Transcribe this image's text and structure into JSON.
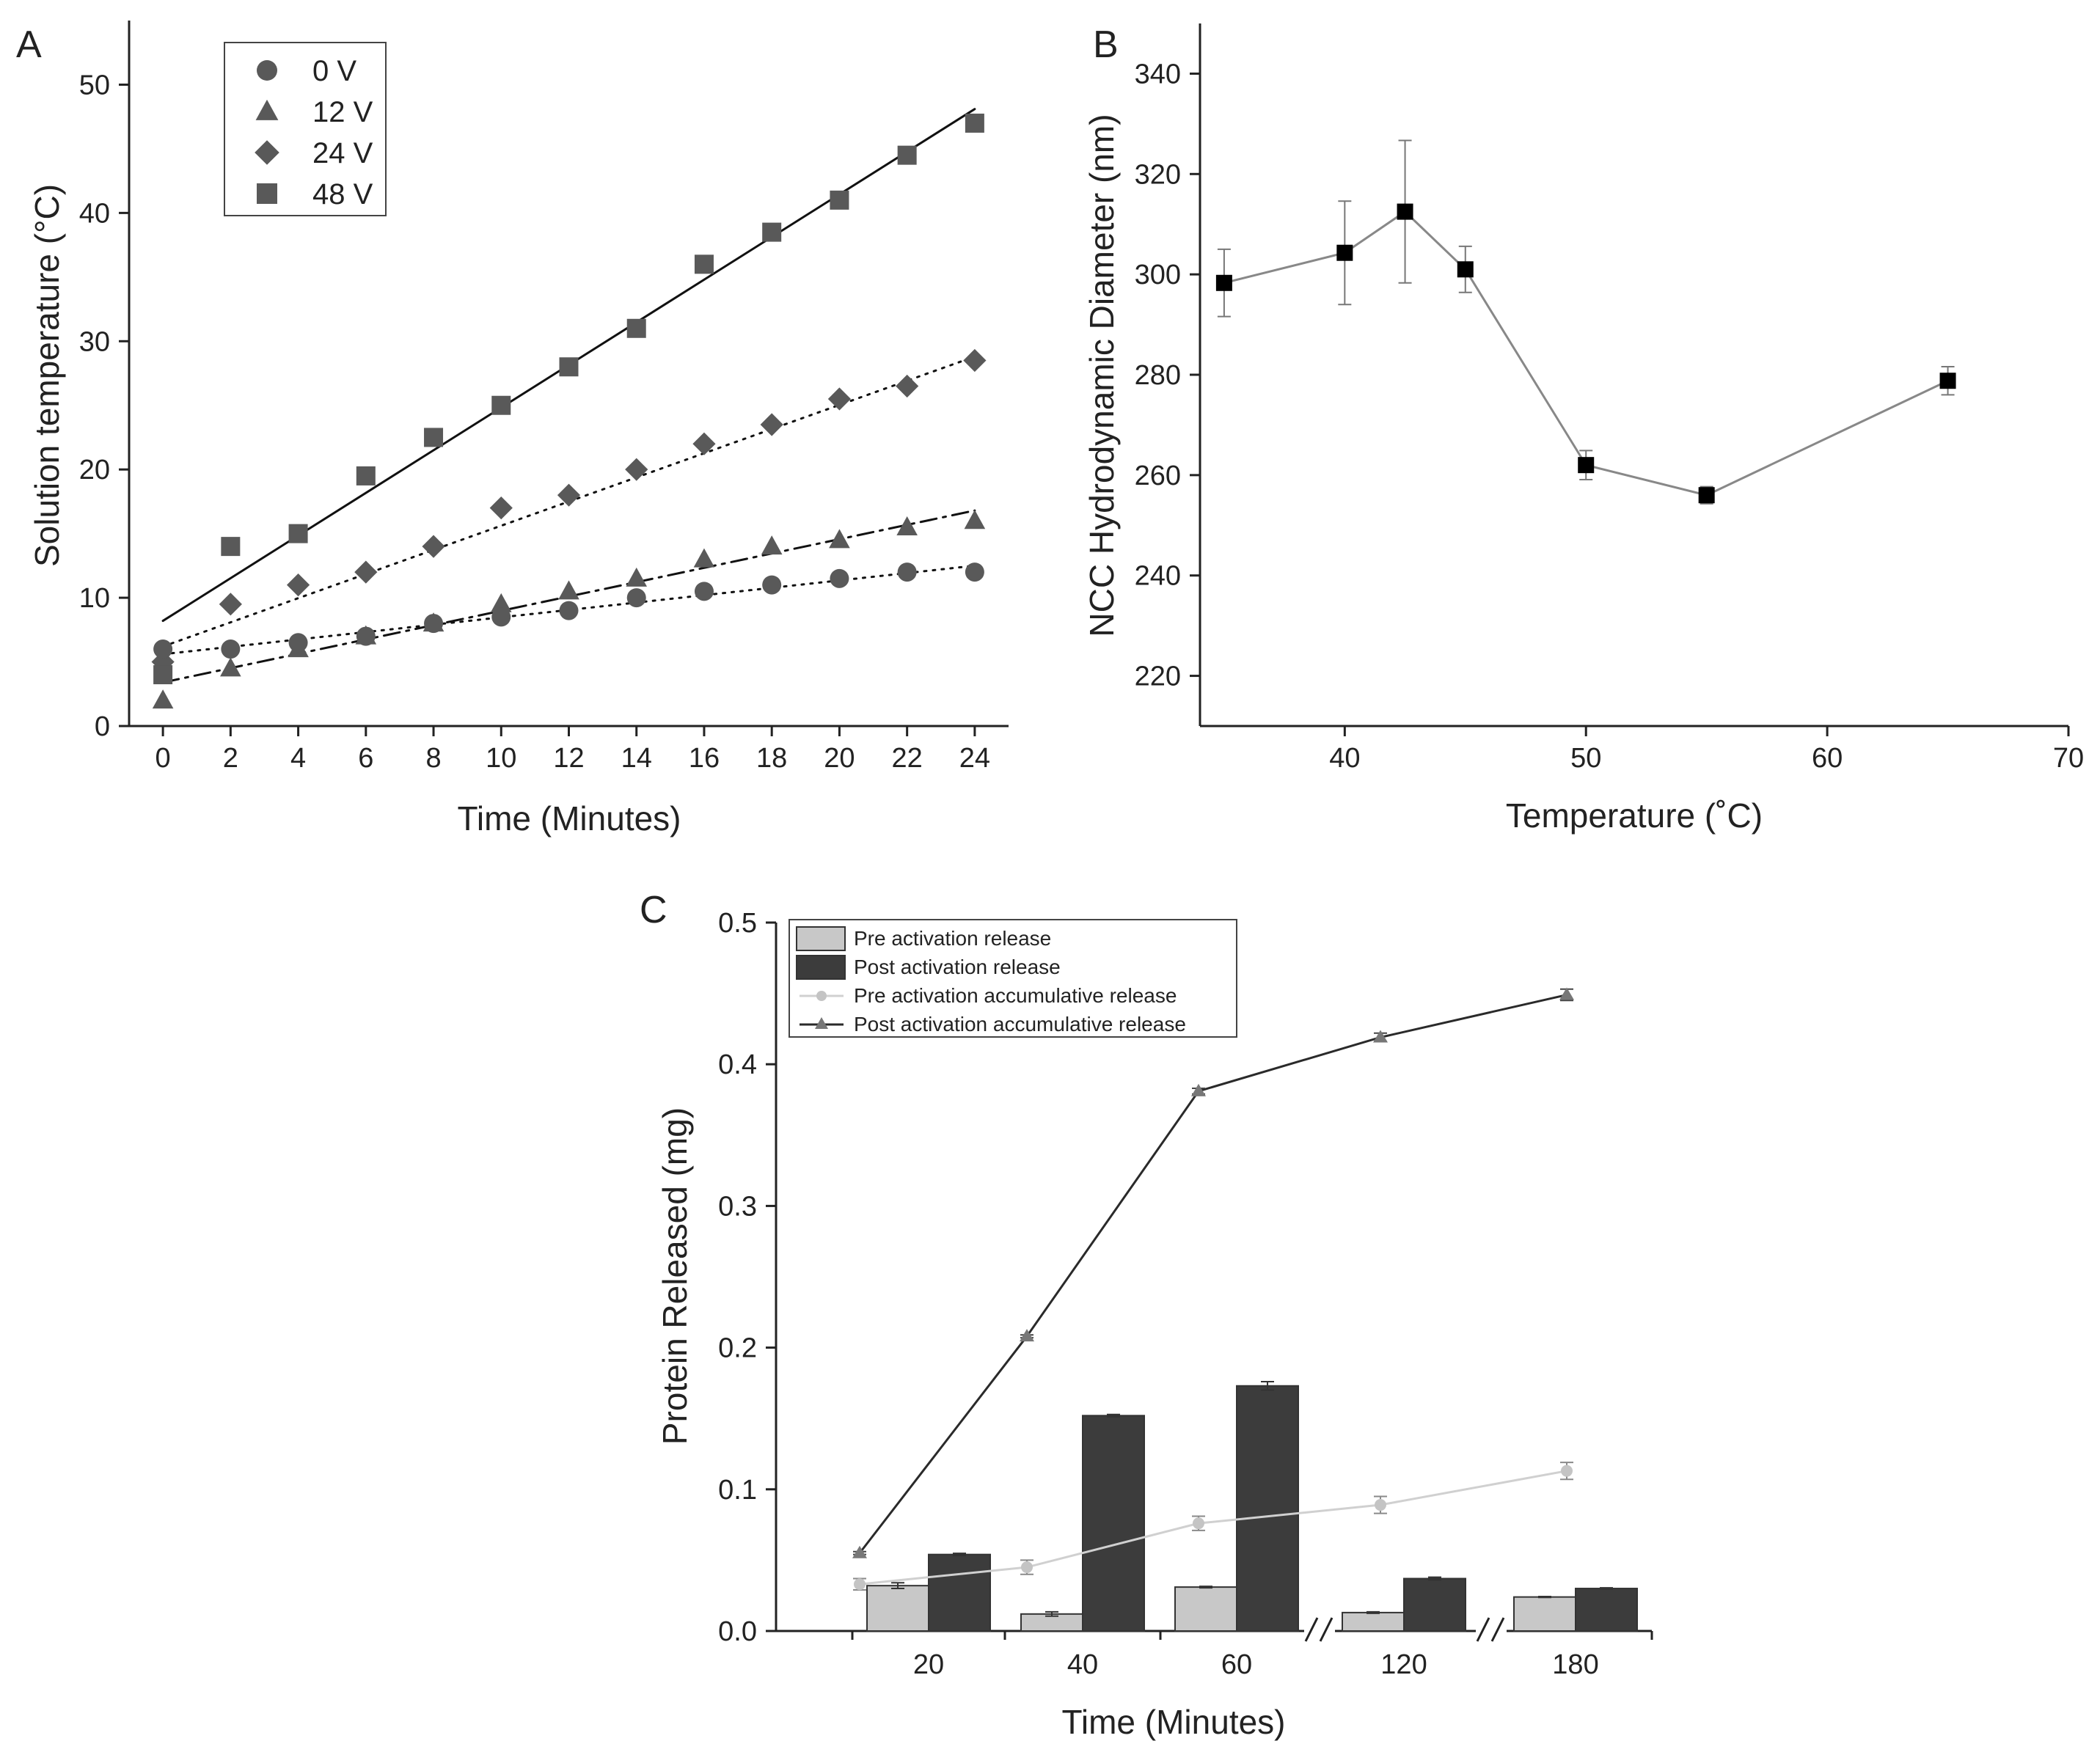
{
  "panels": {
    "A": {
      "letter": "A",
      "chart_data": {
        "type": "scatter",
        "xlabel": "Time (Minutes)",
        "ylabel": "Solution temperature (°C)",
        "xlim": [
          -1,
          25
        ],
        "ylim": [
          0,
          55
        ],
        "xticks": [
          0,
          2,
          4,
          6,
          8,
          10,
          12,
          14,
          16,
          18,
          20,
          22,
          24
        ],
        "yticks": [
          0,
          10,
          20,
          30,
          40,
          50
        ],
        "legend_position": "top-left",
        "x": [
          0,
          2,
          4,
          6,
          8,
          10,
          12,
          14,
          16,
          18,
          20,
          22,
          24
        ],
        "series": [
          {
            "name": "0 V",
            "marker": "circle",
            "values": [
              6,
              6,
              6.5,
              7,
              8,
              8.5,
              9,
              10,
              10.5,
              11,
              11.5,
              12,
              12
            ],
            "fit": [
              5.6,
              12.5
            ],
            "fit_style": "dotted"
          },
          {
            "name": "12 V",
            "marker": "triangle",
            "values": [
              2,
              4.5,
              6,
              7,
              8,
              9.5,
              10.5,
              11.5,
              13,
              14,
              14.5,
              15.5,
              16
            ],
            "fit": [
              3.4,
              16.8
            ],
            "fit_style": "dashdot"
          },
          {
            "name": "24 V",
            "marker": "diamond",
            "values": [
              5,
              9.5,
              11,
              12,
              14,
              17,
              18,
              20,
              22,
              23.5,
              25.5,
              26.5,
              28.5
            ],
            "fit": [
              6.2,
              28.8
            ],
            "fit_style": "dotted"
          },
          {
            "name": "48 V",
            "marker": "square",
            "values": [
              4,
              14,
              15,
              19.5,
              22.5,
              25,
              28,
              31,
              36,
              38.5,
              41,
              44.5,
              47
            ],
            "fit": [
              8.2,
              48.1
            ],
            "fit_style": "solid"
          }
        ]
      }
    },
    "B": {
      "letter": "B",
      "chart_data": {
        "type": "line",
        "xlabel": "Temperature (˚C)",
        "ylabel": "NCC Hydrodynamic Diameter (nm)",
        "xlim": [
          34,
          70
        ],
        "ylim": [
          210,
          350
        ],
        "xticks": [
          40,
          50,
          60,
          70
        ],
        "yticks": [
          220,
          240,
          260,
          280,
          300,
          320,
          340
        ],
        "x": [
          35,
          40,
          42.5,
          45,
          50,
          55,
          65
        ],
        "values": [
          298.3,
          304.3,
          312.5,
          301,
          262,
          256,
          278.8
        ],
        "errors": [
          6.7,
          10.3,
          14.2,
          4.6,
          2.9,
          1.7,
          2.8
        ]
      }
    },
    "C": {
      "letter": "C",
      "chart_data": {
        "type": "bar",
        "xlabel": "Time (Minutes)",
        "ylabel": "Protein Released (mg)",
        "ylim": [
          0,
          0.5
        ],
        "yticks": [
          "0.0",
          "0.1",
          "0.2",
          "0.3",
          "0.4",
          "0.5"
        ],
        "categories": [
          "20",
          "40",
          "60",
          "120",
          "180"
        ],
        "axis_breaks": [
          "between 60 and 120",
          "between 120 and 180"
        ],
        "legend_position": "top-left",
        "series": [
          {
            "name": "Pre activation release",
            "kind": "bar",
            "color": "#c8c8c8",
            "values": [
              0.032,
              0.012,
              0.031,
              0.013,
              0.024
            ],
            "errors": [
              0.002,
              0.0015,
              0.0005,
              0.0005,
              0.0003
            ]
          },
          {
            "name": "Post activation release",
            "kind": "bar",
            "color": "#3c3c3c",
            "values": [
              0.054,
              0.152,
              0.173,
              0.037,
              0.03
            ],
            "errors": [
              0.0008,
              0.0008,
              0.003,
              0.001,
              0.0005
            ]
          },
          {
            "name": "Pre activation accumulative release",
            "kind": "line",
            "color": "#d0d0d0",
            "points": [
              0.033,
              0.045,
              0.076,
              0.089,
              0.113
            ],
            "errors": [
              0.004,
              0.005,
              0.005,
              0.006,
              0.006
            ]
          },
          {
            "name": "Post activation accumulative release",
            "kind": "line",
            "color": "#2a2a2a",
            "points": [
              0.055,
              0.208,
              0.381,
              0.419,
              0.449
            ],
            "errors": [
              0.001,
              0.001,
              0.002,
              0.003,
              0.004
            ]
          }
        ]
      }
    }
  }
}
